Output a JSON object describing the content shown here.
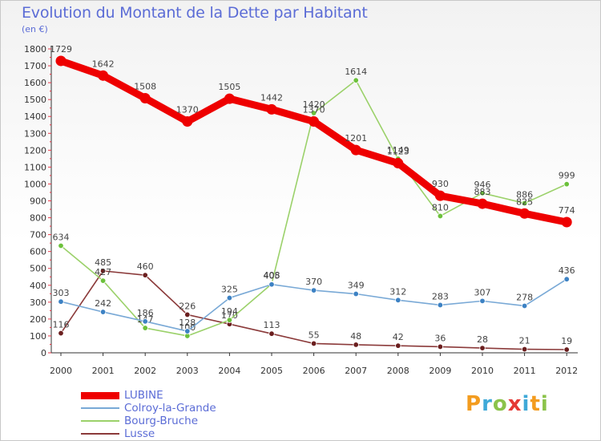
{
  "header": {
    "title": "Evolution du Montant de la Dette par Habitant",
    "unit": "(en €)"
  },
  "logo": {
    "text": "Proxiti",
    "letter_colors": [
      "#f39c1f",
      "#3fa9d8",
      "#8bc34a",
      "#e53935",
      "#3fa9d8",
      "#f39c1f",
      "#8bc34a"
    ]
  },
  "chart_data": {
    "type": "line",
    "title": "Evolution du Montant de la Dette par Habitant",
    "subtitle": "(en €)",
    "x": [
      "2000",
      "2001",
      "2002",
      "2003",
      "2004",
      "2005",
      "2006",
      "2007",
      "2008",
      "2009",
      "2010",
      "2011",
      "2012"
    ],
    "ylim": [
      0,
      1800
    ],
    "yticks": [
      0,
      100,
      200,
      300,
      400,
      500,
      600,
      700,
      800,
      900,
      1000,
      1100,
      1200,
      1300,
      1400,
      1500,
      1600,
      1700,
      1800
    ],
    "grid": false,
    "legend_position": "bottom-left",
    "series": [
      {
        "name": "LUBINE",
        "color": "#ee0000",
        "marker_color": "#ee0000",
        "values": [
          1729,
          1642,
          1508,
          1370,
          1505,
          1442,
          1370,
          1201,
          1123,
          930,
          883,
          825,
          774
        ],
        "labels": [
          "1729",
          "1642",
          "1508",
          "1370",
          "1505",
          "1442",
          "1370",
          "1201",
          "1123",
          "930",
          "883",
          "825",
          "774"
        ]
      },
      {
        "name": "Colroy-la-Grande",
        "color": "#79a9d6",
        "marker_color": "#3d82c4",
        "values": [
          303,
          242,
          186,
          128,
          325,
          405,
          370,
          349,
          312,
          283,
          307,
          278,
          436
        ],
        "labels": [
          "303",
          "242",
          "186",
          "128",
          "325",
          "405",
          "370",
          "349",
          "312",
          "283",
          "307",
          "278",
          "436"
        ]
      },
      {
        "name": "Bourg-Bruche",
        "color": "#9bd16a",
        "marker_color": "#6cc13b",
        "values": [
          634,
          427,
          147,
          100,
          194,
          408,
          1420,
          1614,
          1149,
          810,
          946,
          886,
          999
        ],
        "labels": [
          "634",
          "427",
          "147",
          "100",
          "194",
          "408",
          "1420",
          "1614",
          "1149",
          "810",
          "946",
          "886",
          "999"
        ]
      },
      {
        "name": "Lusse",
        "color": "#8b3a3a",
        "marker_color": "#6b1f1f",
        "values": [
          116,
          485,
          460,
          226,
          170,
          113,
          55,
          48,
          42,
          36,
          28,
          21,
          19
        ],
        "labels": [
          "116",
          "485",
          "460",
          "226",
          "170",
          "113",
          "55",
          "48",
          "42",
          "36",
          "28",
          "21",
          "19"
        ]
      }
    ]
  }
}
